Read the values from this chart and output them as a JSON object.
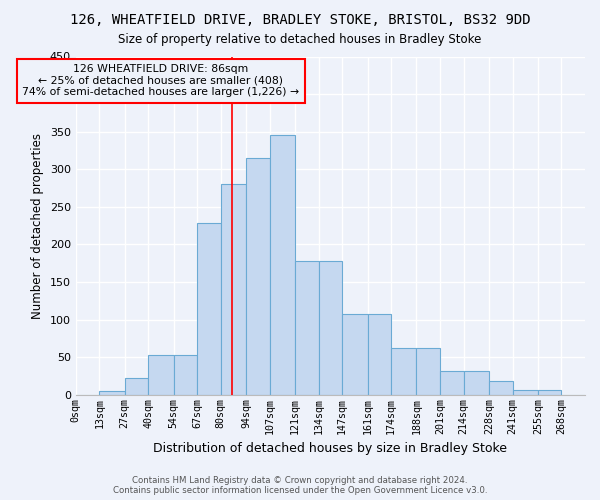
{
  "title1": "126, WHEATFIELD DRIVE, BRADLEY STOKE, BRISTOL, BS32 9DD",
  "title2": "Size of property relative to detached houses in Bradley Stoke",
  "xlabel": "Distribution of detached houses by size in Bradley Stoke",
  "ylabel": "Number of detached properties",
  "bin_labels": [
    "0sqm",
    "13sqm",
    "27sqm",
    "40sqm",
    "54sqm",
    "67sqm",
    "80sqm",
    "94sqm",
    "107sqm",
    "121sqm",
    "134sqm",
    "147sqm",
    "161sqm",
    "174sqm",
    "188sqm",
    "201sqm",
    "214sqm",
    "228sqm",
    "241sqm",
    "255sqm",
    "268sqm"
  ],
  "bar_heights": [
    0,
    5,
    22,
    53,
    53,
    228,
    280,
    315,
    345,
    178,
    178,
    107,
    107,
    63,
    63,
    32,
    32,
    18,
    7,
    7,
    0
  ],
  "bar_color": "#c5d8f0",
  "bar_edge_color": "#6aaad4",
  "bin_edges": [
    0,
    13,
    27,
    40,
    54,
    67,
    80,
    94,
    107,
    121,
    134,
    147,
    161,
    174,
    188,
    201,
    214,
    228,
    241,
    255,
    268,
    281
  ],
  "property_size": 86,
  "annotation_text_line1": "126 WHEATFIELD DRIVE: 86sqm",
  "annotation_text_line2": "← 25% of detached houses are smaller (408)",
  "annotation_text_line3": "74% of semi-detached houses are larger (1,226) →",
  "annotation_box_color": "red",
  "vline_color": "red",
  "ylim": [
    0,
    450
  ],
  "yticks": [
    0,
    50,
    100,
    150,
    200,
    250,
    300,
    350,
    400,
    450
  ],
  "footer_line1": "Contains HM Land Registry data © Crown copyright and database right 2024.",
  "footer_line2": "Contains public sector information licensed under the Open Government Licence v3.0.",
  "bg_color": "#eef2fa",
  "grid_color": "#ffffff"
}
